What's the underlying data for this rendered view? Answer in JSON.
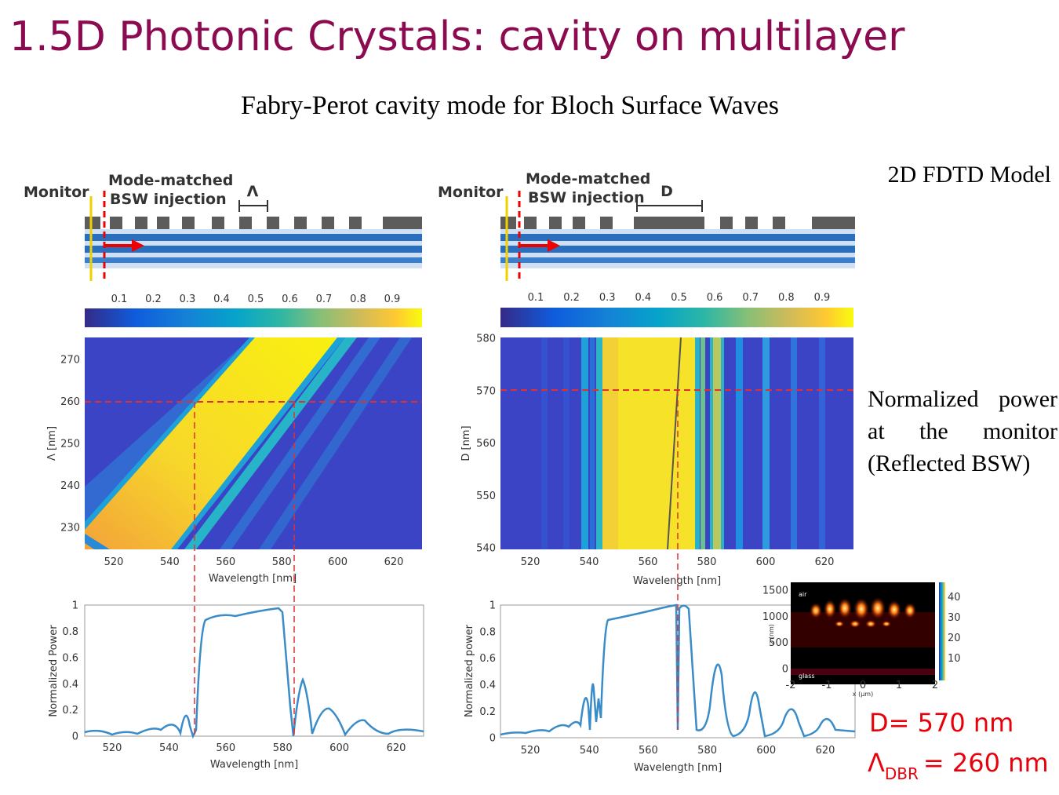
{
  "header": {
    "title": "1.5D Photonic Crystals: cavity on multilayer",
    "subtitle": "Fabry-Perot cavity mode for Bloch Surface Waves"
  },
  "side": {
    "model": "2D FDTD Model",
    "caption": "Normalized power at the monitor (Reflected BSW)",
    "d_value": "D= 570 nm",
    "lambda_symbol": "Λ",
    "lambda_sub": "DBR",
    "lambda_value": "= 260 nm"
  },
  "panels": [
    {
      "schematic": {
        "monitor": "Monitor",
        "injection_1": "Mode-matched",
        "injection_2": "BSW injection",
        "dimension": "Λ"
      },
      "colorbar_ticks": [
        "0.1",
        "0.2",
        "0.3",
        "0.4",
        "0.5",
        "0.6",
        "0.7",
        "0.8",
        "0.9"
      ],
      "map": {
        "yticks": [
          "270",
          "260",
          "250",
          "240",
          "230"
        ],
        "xticks": [
          "520",
          "540",
          "560",
          "580",
          "600",
          "620"
        ],
        "xlabel": "Wavelength [nm]",
        "ylabel": "Λ [nm]"
      },
      "plot": {
        "yticks": [
          "1",
          "0.8",
          "0.6",
          "0.4",
          "0.2",
          "0"
        ],
        "xticks": [
          "520",
          "540",
          "560",
          "580",
          "600",
          "620"
        ],
        "xlabel": "Wavelength [nm]",
        "ylabel": "Normalized Power"
      }
    },
    {
      "schematic": {
        "monitor": "Monitor",
        "injection_1": "Mode-matched",
        "injection_2": "BSW injection",
        "dimension": "D"
      },
      "colorbar_ticks": [
        "0.1",
        "0.2",
        "0.3",
        "0.4",
        "0.5",
        "0.6",
        "0.7",
        "0.8",
        "0.9"
      ],
      "map": {
        "yticks": [
          "580",
          "570",
          "560",
          "550",
          "540"
        ],
        "xticks": [
          "520",
          "540",
          "560",
          "580",
          "600",
          "620"
        ],
        "xlabel": "Wavelength [nm]",
        "ylabel": "D [nm]"
      },
      "plot": {
        "yticks": [
          "1",
          "0.8",
          "0.6",
          "0.4",
          "0.2",
          "0"
        ],
        "xticks": [
          "520",
          "540",
          "560",
          "580",
          "600",
          "620"
        ],
        "xlabel": "Wavelength [nm]",
        "ylabel": "Normalized power"
      }
    }
  ],
  "inset": {
    "top_label": "air",
    "bottom_label": "glass",
    "yticks": [
      "1500",
      "1000",
      "500",
      "0"
    ],
    "xticks": [
      "-2",
      "-1",
      "0",
      "1",
      "2"
    ],
    "ylabel": "z (nm)",
    "xlabel": "x (μm)",
    "colorbar_ticks": [
      "40",
      "30",
      "20",
      "10"
    ]
  }
}
